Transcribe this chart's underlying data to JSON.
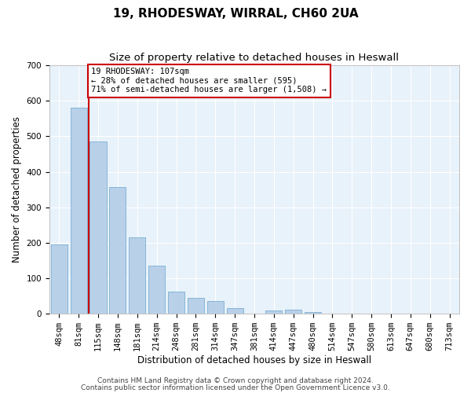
{
  "title": "19, RHODESWAY, WIRRAL, CH60 2UA",
  "subtitle": "Size of property relative to detached houses in Heswall",
  "xlabel": "Distribution of detached houses by size in Heswall",
  "ylabel": "Number of detached properties",
  "bar_labels": [
    "48sqm",
    "81sqm",
    "115sqm",
    "148sqm",
    "181sqm",
    "214sqm",
    "248sqm",
    "281sqm",
    "314sqm",
    "347sqm",
    "381sqm",
    "414sqm",
    "447sqm",
    "480sqm",
    "514sqm",
    "547sqm",
    "580sqm",
    "613sqm",
    "647sqm",
    "680sqm",
    "713sqm"
  ],
  "bar_values": [
    195,
    580,
    485,
    357,
    215,
    135,
    63,
    45,
    35,
    17,
    0,
    10,
    12,
    5,
    0,
    0,
    0,
    0,
    0,
    0,
    0
  ],
  "bar_color": "#B8D0E8",
  "bar_edge_color": "#7AAED4",
  "vline_x": 1.5,
  "vline_color": "#CC0000",
  "ylim": [
    0,
    700
  ],
  "yticks": [
    0,
    100,
    200,
    300,
    400,
    500,
    600,
    700
  ],
  "annotation_text": "19 RHODESWAY: 107sqm\n← 28% of detached houses are smaller (595)\n71% of semi-detached houses are larger (1,508) →",
  "annotation_box_color": "#FFFFFF",
  "annotation_box_edge_color": "#CC0000",
  "footer_line1": "Contains HM Land Registry data © Crown copyright and database right 2024.",
  "footer_line2": "Contains public sector information licensed under the Open Government Licence v3.0.",
  "background_color": "#FFFFFF",
  "plot_bg_color": "#E8F2FA",
  "grid_color": "#FFFFFF",
  "title_fontsize": 11,
  "subtitle_fontsize": 9.5,
  "tick_fontsize": 7.5,
  "ylabel_fontsize": 8.5,
  "xlabel_fontsize": 8.5,
  "footer_fontsize": 6.5
}
